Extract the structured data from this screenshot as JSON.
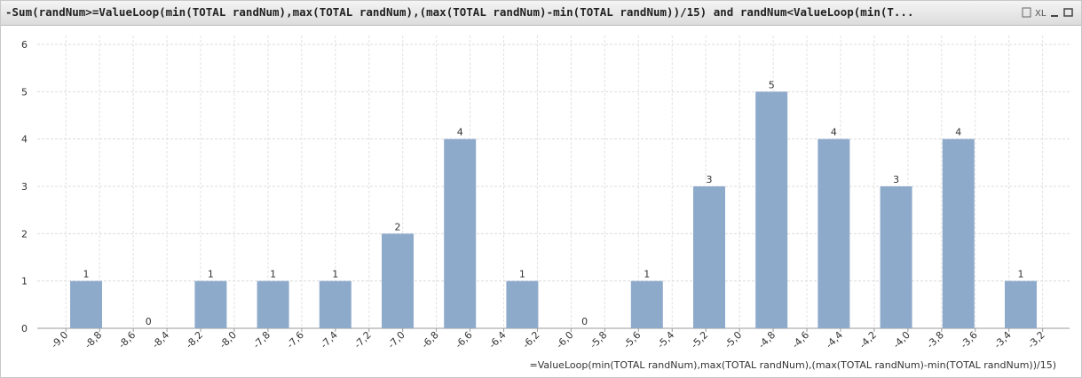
{
  "chart_data": {
    "type": "bar",
    "title": "-Sum(randNum>=ValueLoop(min(TOTAL randNum),max(TOTAL randNum),(max(TOTAL randNum)-min(TOTAL randNum))/15) and randNum<ValueLoop(min(T...",
    "toolbar_text": "XL",
    "x_label": "=ValueLoop(min(TOTAL randNum),max(TOTAL randNum),(max(TOTAL randNum)-min(TOTAL randNum))/15)",
    "x": [
      -8.88,
      -8.51,
      -8.14,
      -7.77,
      -7.4,
      -7.03,
      -6.66,
      -6.29,
      -5.92,
      -5.55,
      -5.18,
      -4.81,
      -4.44,
      -4.07,
      -3.7,
      -3.33
    ],
    "values": [
      1,
      0,
      1,
      1,
      1,
      2,
      4,
      1,
      0,
      1,
      3,
      5,
      4,
      3,
      4,
      1
    ],
    "color": "#8eaacb",
    "xlim": [
      -9.17,
      -3.04
    ],
    "xticks": [
      {
        "value": -9.0,
        "label": "-9,0"
      },
      {
        "value": -8.8,
        "label": "-8,8"
      },
      {
        "value": -8.6,
        "label": "-8,6"
      },
      {
        "value": -8.4,
        "label": "-8,4"
      },
      {
        "value": -8.2,
        "label": "-8,2"
      },
      {
        "value": -8.0,
        "label": "-8,0"
      },
      {
        "value": -7.8,
        "label": "-7,8"
      },
      {
        "value": -7.6,
        "label": "-7,6"
      },
      {
        "value": -7.4,
        "label": "-7,4"
      },
      {
        "value": -7.2,
        "label": "-7,2"
      },
      {
        "value": -7.0,
        "label": "-7,0"
      },
      {
        "value": -6.8,
        "label": "-6,8"
      },
      {
        "value": -6.6,
        "label": "-6,6"
      },
      {
        "value": -6.4,
        "label": "-6,4"
      },
      {
        "value": -6.2,
        "label": "-6,2"
      },
      {
        "value": -6.0,
        "label": "-6,0"
      },
      {
        "value": -5.8,
        "label": "-5,8"
      },
      {
        "value": -5.6,
        "label": "-5,6"
      },
      {
        "value": -5.4,
        "label": "-5,4"
      },
      {
        "value": -5.2,
        "label": "-5,2"
      },
      {
        "value": -5.0,
        "label": "-5,0"
      },
      {
        "value": -4.8,
        "label": "-4,8"
      },
      {
        "value": -4.6,
        "label": "-4,6"
      },
      {
        "value": -4.4,
        "label": "-4,4"
      },
      {
        "value": -4.2,
        "label": "-4,2"
      },
      {
        "value": -4.0,
        "label": "-4,0"
      },
      {
        "value": -3.8,
        "label": "-3,8"
      },
      {
        "value": -3.6,
        "label": "-3,6"
      },
      {
        "value": -3.4,
        "label": "-3,4"
      },
      {
        "value": -3.2,
        "label": "-3,2"
      }
    ],
    "ylim": [
      0,
      6
    ],
    "yticks": [
      0,
      1,
      2,
      3,
      4,
      5,
      6
    ],
    "grid": true
  }
}
